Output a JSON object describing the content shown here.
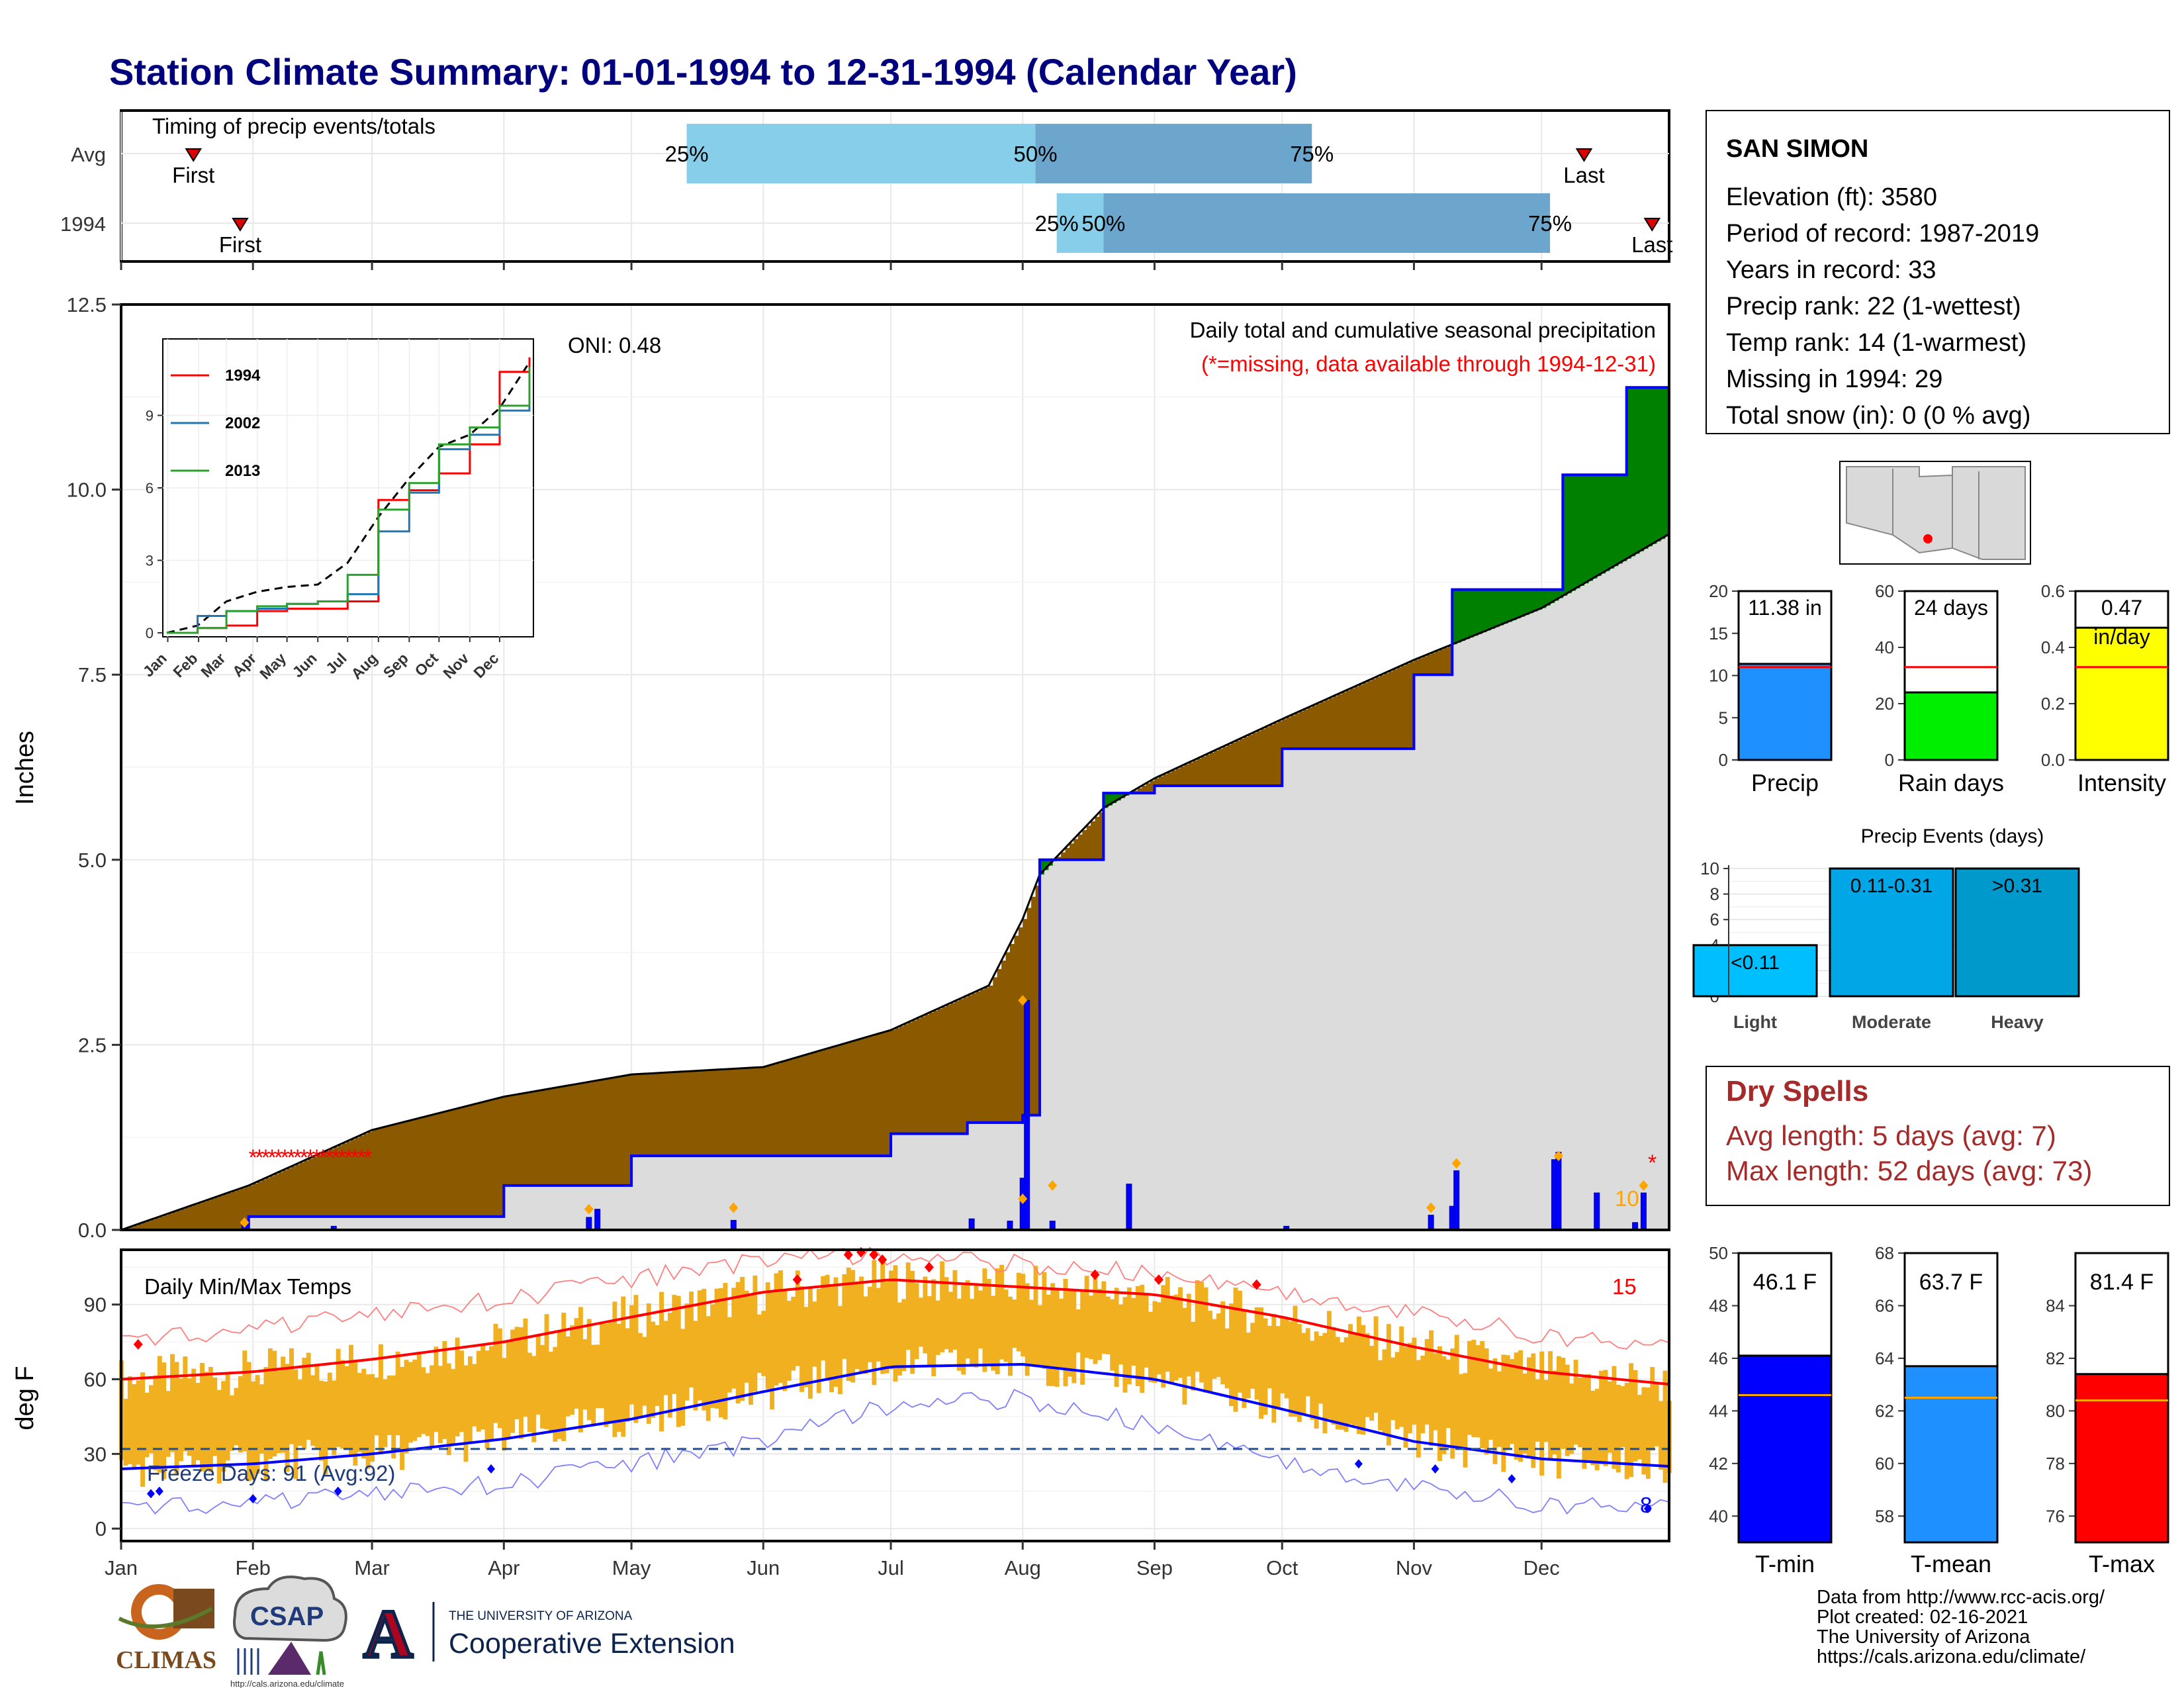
{
  "title": "Station Climate Summary: 01-01-1994 to 12-31-1994 (Calendar Year)",
  "months": [
    "Jan",
    "Feb",
    "Mar",
    "Apr",
    "May",
    "Jun",
    "Jul",
    "Aug",
    "Sep",
    "Oct",
    "Nov",
    "Dec"
  ],
  "timing": {
    "label": "Timing of precip events/totals",
    "rows": [
      {
        "name": "Avg",
        "first_day": 18,
        "p25": 134,
        "p50": 216,
        "p75": 281,
        "last_day": 345
      },
      {
        "name": "1994",
        "first_day": 29,
        "p25": 221,
        "p50": 232,
        "p75": 337,
        "last_day": 361
      }
    ],
    "first_label": "First",
    "last_label": "Last",
    "p25_label": "25%",
    "p50_label": "50%",
    "p75_label": "75%"
  },
  "station": {
    "name": "SAN SIMON",
    "lines": [
      "Elevation (ft): 3580",
      "Period of record: 1987-2019",
      "Years in record: 33",
      "Precip rank: 22 (1-wettest)",
      "Temp rank: 14 (1-warmest)",
      "Missing in 1994: 29",
      "Total snow (in): 0 (0 % avg)"
    ]
  },
  "precip_panel": {
    "ylabel": "Inches",
    "oni": "ONI: 0.48",
    "note1": "Daily total and cumulative seasonal precipitation",
    "note2": "(*=missing, data available through 1994-12-31)",
    "max_daily_label": "10",
    "yticks": [
      "0.0",
      "2.5",
      "5.0",
      "7.5",
      "10.0",
      "12.5"
    ]
  },
  "inset": {
    "legend": [
      "1994",
      "2002",
      "2013"
    ],
    "yticks": [
      "0",
      "3",
      "6",
      "9"
    ],
    "months": [
      "Jan",
      "Feb",
      "Mar",
      "Apr",
      "May",
      "Jun",
      "Jul",
      "Aug",
      "Sep",
      "Oct",
      "Nov",
      "Dec"
    ]
  },
  "temp_panel": {
    "label": "Daily Min/Max Temps",
    "ylabel": "deg F",
    "freeze": "Freeze Days: 91 (Avg:92)",
    "count_hi": "15",
    "count_lo": "8",
    "yticks": [
      "0",
      "30",
      "60",
      "90"
    ]
  },
  "summary_bars": [
    {
      "name": "Precip",
      "label": "11.38 in",
      "value": 11.38,
      "avg": 11.0,
      "ymax": 20,
      "yticks": [
        "0",
        "5",
        "10",
        "15",
        "20"
      ],
      "color": "#1e90ff"
    },
    {
      "name": "Rain days",
      "label": "24 days",
      "value": 24,
      "avg": 33,
      "ymax": 60,
      "yticks": [
        "0",
        "20",
        "40",
        "60"
      ],
      "color": "#00ee00"
    },
    {
      "name": "Intensity",
      "label": "0.47",
      "sublabel": "in/day",
      "value": 0.47,
      "avg": 0.33,
      "ymax": 0.6,
      "yticks": [
        "0.0",
        "0.2",
        "0.4",
        "0.6"
      ],
      "color": "#ffff00"
    }
  ],
  "events": {
    "title": "Precip Events (days)",
    "yticks": [
      "0",
      "2",
      "4",
      "6",
      "8",
      "10"
    ],
    "cats": [
      {
        "name": "Light",
        "label": "<0.11",
        "value": 4,
        "color": "#00bfff"
      },
      {
        "name": "Moderate",
        "label": "0.11-0.31",
        "value": 10,
        "color": "#00a6e6"
      },
      {
        "name": "Heavy",
        "label": ">0.31",
        "value": 10,
        "color": "#0099cc"
      }
    ]
  },
  "dry_spells": {
    "title": "Dry Spells",
    "lines": [
      "Avg length: 5 days (avg: 7)",
      "Max length: 52 days (avg: 73)"
    ]
  },
  "temp_bars": [
    {
      "name": "T-min",
      "label": "46.1 F",
      "value": 46.1,
      "avg": 44.6,
      "ylim": [
        39,
        50
      ],
      "yticks": [
        "40",
        "42",
        "44",
        "46",
        "48",
        "50"
      ],
      "color": "#0000ff"
    },
    {
      "name": "T-mean",
      "label": "63.7 F",
      "value": 63.7,
      "avg": 62.5,
      "ylim": [
        57,
        68
      ],
      "yticks": [
        "58",
        "60",
        "62",
        "64",
        "66",
        "68"
      ],
      "color": "#1e90ff"
    },
    {
      "name": "T-max",
      "label": "81.4 F",
      "value": 81.4,
      "avg": 80.4,
      "ylim": [
        75,
        86
      ],
      "yticks": [
        "76",
        "78",
        "80",
        "82",
        "84"
      ],
      "color": "#ff0000"
    }
  ],
  "footer": [
    "Data from http://www.rcc-acis.org/",
    "Plot created: 02-16-2021",
    "The University of Arizona",
    "https://cals.arizona.edu/climate/"
  ],
  "logos": {
    "climas": "CLIMAS",
    "csap": "CSAP",
    "csap_url": "http://cals.arizona.edu/climate",
    "ua_small": "THE UNIVERSITY OF ARIZONA",
    "ua_big": "Cooperative Extension",
    "ua_letter": "A"
  },
  "colors": {
    "avg_fill": "#8b5a00",
    "above_fill": "#008000",
    "blue": "#0000ff",
    "gold": "#f0b020",
    "red": "#ff0000"
  },
  "chart_data": [
    {
      "type": "line",
      "title": "Daily total and cumulative seasonal precipitation",
      "ylabel": "Inches",
      "ylim": [
        0,
        12.5
      ],
      "series": [
        {
          "name": "1994",
          "x": [
            1,
            31,
            60,
            91,
            121,
            152,
            182,
            200,
            213,
            217,
            232,
            244,
            274,
            305,
            314,
            340,
            355,
            365
          ],
          "y": [
            0.0,
            0.18,
            0.18,
            0.6,
            1.0,
            1.0,
            1.3,
            1.45,
            1.55,
            5.0,
            5.9,
            6.0,
            6.5,
            7.5,
            8.65,
            10.2,
            11.38,
            11.38
          ]
        }
      ],
      "avg_cumulative": {
        "x": [
          1,
          31,
          60,
          91,
          121,
          152,
          182,
          205,
          213,
          217,
          232,
          244,
          274,
          305,
          335,
          365
        ],
        "y": [
          0.0,
          0.6,
          1.35,
          1.8,
          2.1,
          2.2,
          2.7,
          3.3,
          4.2,
          4.8,
          5.7,
          6.1,
          6.9,
          7.7,
          8.4,
          9.4
        ]
      },
      "daily_events": {
        "x": [
          30,
          51,
          111,
          113,
          145,
          201,
          210,
          213,
          214,
          220,
          238,
          275,
          309,
          314,
          315,
          338,
          339,
          348,
          357,
          359
        ],
        "y": [
          0.1,
          0.05,
          0.17,
          0.28,
          0.13,
          0.15,
          0.12,
          0.7,
          3.1,
          0.12,
          0.62,
          0.05,
          0.2,
          0.32,
          0.8,
          0.95,
          1.05,
          0.5,
          0.1,
          0.5
        ]
      }
    },
    {
      "type": "line",
      "title": "Daily Min/Max Temps",
      "ylabel": "deg F",
      "ylim": [
        -5,
        112
      ],
      "series": [
        {
          "name": "avg max",
          "x": [
            1,
            32,
            60,
            91,
            121,
            152,
            182,
            213,
            244,
            274,
            305,
            335,
            365
          ],
          "y": [
            60,
            63,
            68,
            75,
            85,
            95,
            100,
            97,
            94,
            85,
            73,
            63,
            58
          ]
        },
        {
          "name": "avg min",
          "x": [
            1,
            32,
            60,
            91,
            121,
            152,
            182,
            213,
            244,
            274,
            305,
            335,
            365
          ],
          "y": [
            24,
            26,
            30,
            36,
            44,
            55,
            65,
            66,
            60,
            48,
            35,
            28,
            25
          ]
        },
        {
          "name": "record high",
          "x": [
            1,
            32,
            60,
            91,
            121,
            152,
            182,
            213,
            244,
            274,
            305,
            335,
            365
          ],
          "y": [
            77,
            80,
            86,
            92,
            100,
            108,
            110,
            106,
            103,
            96,
            86,
            78,
            72
          ]
        },
        {
          "name": "record low",
          "x": [
            1,
            32,
            60,
            91,
            121,
            152,
            182,
            213,
            244,
            274,
            305,
            335,
            365
          ],
          "y": [
            10,
            10,
            14,
            18,
            26,
            35,
            50,
            52,
            42,
            28,
            16,
            10,
            8
          ]
        }
      ]
    },
    {
      "type": "line",
      "title": "",
      "ylim": [
        0,
        11.5
      ],
      "xlabel": "",
      "ylabel": "",
      "series": [
        {
          "name": "1994",
          "x": [
            0,
            31,
            60,
            91,
            121,
            152,
            182,
            213,
            244,
            274,
            305,
            335,
            365
          ],
          "y": [
            0,
            0.2,
            0.3,
            0.9,
            1.0,
            1.0,
            1.3,
            5.5,
            5.9,
            6.6,
            7.8,
            10.8,
            11.4
          ]
        },
        {
          "name": "2002",
          "x": [
            0,
            31,
            60,
            91,
            121,
            152,
            182,
            213,
            244,
            274,
            305,
            335,
            365
          ],
          "y": [
            0,
            0.7,
            0.9,
            1.0,
            1.2,
            1.3,
            1.6,
            4.2,
            5.8,
            7.6,
            8.2,
            9.2,
            10.6
          ]
        },
        {
          "name": "2013",
          "x": [
            0,
            31,
            60,
            91,
            121,
            152,
            182,
            213,
            244,
            274,
            305,
            335,
            365
          ],
          "y": [
            0,
            0.2,
            0.9,
            1.1,
            1.2,
            1.3,
            2.4,
            5.1,
            6.2,
            7.8,
            8.5,
            9.4,
            11.0
          ]
        }
      ]
    },
    {
      "type": "bar",
      "categories": [
        "Light",
        "Moderate",
        "Heavy"
      ],
      "values": [
        4,
        10,
        10
      ],
      "title": "Precip Events (days)",
      "ylim": [
        0,
        10
      ]
    }
  ]
}
